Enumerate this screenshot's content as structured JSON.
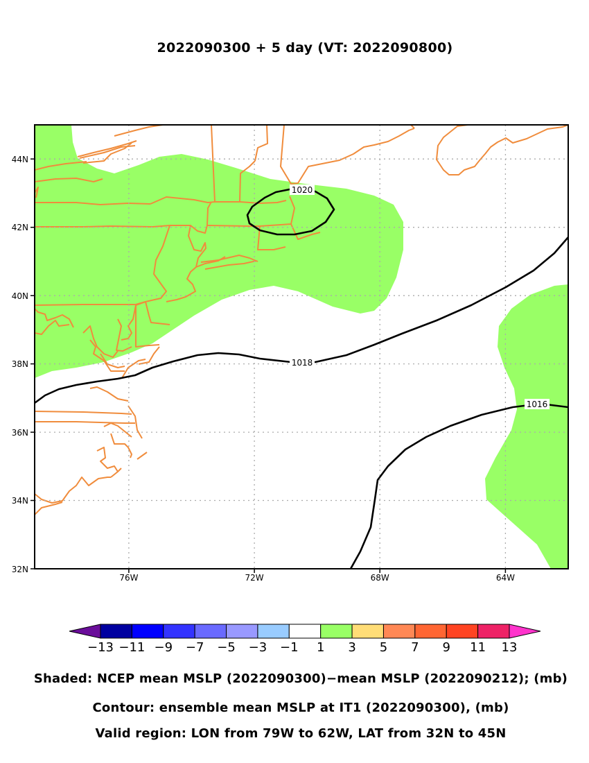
{
  "title": "2022090300 + 5 day (VT: 2022090800)",
  "map": {
    "region": {
      "lon_min": -79,
      "lon_max": -62,
      "lat_min": 32,
      "lat_max": 45
    },
    "lon_ticks": [
      {
        "lon": -76,
        "label": "76W"
      },
      {
        "lon": -72,
        "label": "72W"
      },
      {
        "lon": -68,
        "label": "68W"
      },
      {
        "lon": -64,
        "label": "64W"
      }
    ],
    "lat_ticks": [
      {
        "lat": 32,
        "label": "32N"
      },
      {
        "lat": 34,
        "label": "34N"
      },
      {
        "lat": 36,
        "label": "36N"
      },
      {
        "lat": 38,
        "label": "38N"
      },
      {
        "lat": 40,
        "label": "40N"
      },
      {
        "lat": 42,
        "label": "42N"
      },
      {
        "lat": 44,
        "label": "44N"
      }
    ],
    "contours": [
      {
        "value": 1020,
        "label": "1020"
      },
      {
        "value": 1018,
        "label": "1018"
      },
      {
        "value": 1016,
        "label": "1016"
      }
    ],
    "shading_color": "#99ff66",
    "coastline_color": "#f08c3c",
    "contour_color": "#000000"
  },
  "colorbar": {
    "colors": [
      "#6a0d9a",
      "#0000a0",
      "#0000ff",
      "#3333ff",
      "#6a6aff",
      "#9999ff",
      "#99ccff",
      "#ffffff",
      "#99ff66",
      "#ffdd77",
      "#ff8855",
      "#ff6633",
      "#ff4422",
      "#ee2266",
      "#ff33cc"
    ],
    "labels": [
      "−13",
      "−11",
      "−9",
      "−7",
      "−5",
      "−3",
      "−1",
      "1",
      "3",
      "5",
      "7",
      "9",
      "11",
      "13"
    ]
  },
  "captions": {
    "shaded": "Shaded: NCEP mean MSLP (2022090300)−mean MSLP (2022090212); (mb)",
    "contour": "Contour: ensemble mean MSLP at IT1 (2022090300), (mb)",
    "region": "Valid region: LON from 79W to 62W, LAT from 32N to 45N"
  }
}
